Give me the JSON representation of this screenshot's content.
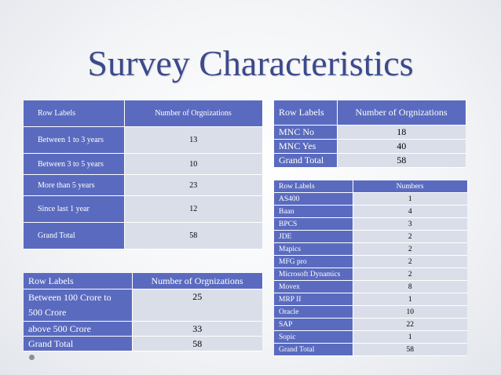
{
  "title": "Survey Characteristics",
  "experience_table": {
    "headers": [
      "Row Labels",
      "Number of Orgnizations"
    ],
    "rows": [
      [
        "Between 1 to 3 years",
        "13"
      ],
      [
        "Between 3 to 5 years",
        "10"
      ],
      [
        "More than 5 years",
        "23"
      ],
      [
        "Since last 1 year",
        "12"
      ],
      [
        "Grand Total",
        "58"
      ]
    ]
  },
  "mnc_table": {
    "headers": [
      "Row Labels",
      "Number of Orgnizations"
    ],
    "rows": [
      [
        "MNC No",
        "18"
      ],
      [
        "MNC Yes",
        "40"
      ],
      [
        "Grand Total",
        "58"
      ]
    ]
  },
  "software_table": {
    "headers": [
      "Row Labels",
      "Numbers"
    ],
    "rows": [
      [
        "AS400",
        "1"
      ],
      [
        "Baan",
        "4"
      ],
      [
        "BPCS",
        "3"
      ],
      [
        "JDE",
        "2"
      ],
      [
        "Mapics",
        "2"
      ],
      [
        "MFG pro",
        "2"
      ],
      [
        "Microsoft Dynamics",
        "2"
      ],
      [
        "Movex",
        "8"
      ],
      [
        "MRP II",
        "1"
      ],
      [
        "Oracle",
        "10"
      ],
      [
        "SAP",
        "22"
      ],
      [
        "Sopic",
        "1"
      ],
      [
        "Grand Total",
        "58"
      ]
    ]
  },
  "turnover_table": {
    "headers": [
      "Row Labels",
      "Number of Orgnizations"
    ],
    "rows": [
      [
        "Between 100 Crore to 500 Crore",
        "25"
      ],
      [
        "above 500 Crore",
        "33"
      ],
      [
        "Grand Total",
        "58"
      ]
    ]
  },
  "colors": {
    "title": "#3c4a8c",
    "header": "#5a6bbf",
    "value_cell": "#dadee9"
  }
}
